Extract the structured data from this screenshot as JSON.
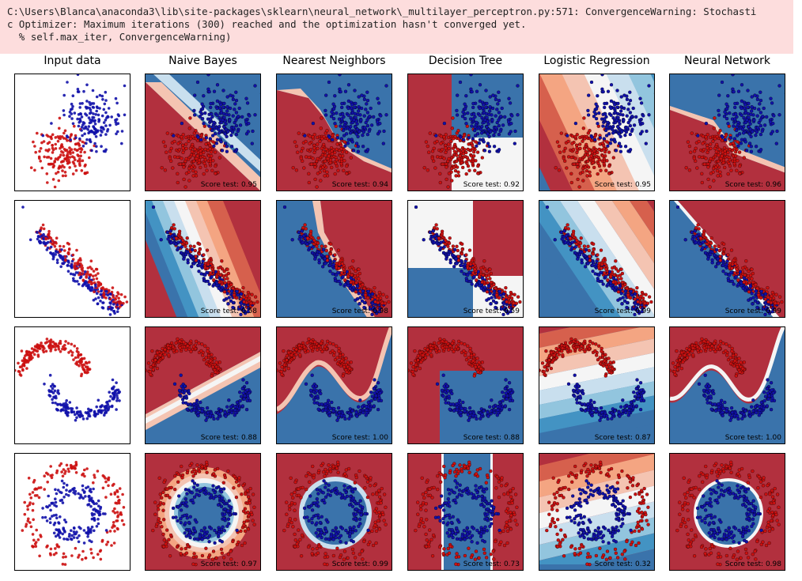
{
  "warning": {
    "lines": [
      "C:\\Users\\Blanca\\anaconda3\\lib\\site-packages\\sklearn\\neural_network\\_multilayer_perceptron.py:571: ConvergenceWarning: Stochasti",
      "c Optimizer: Maximum iterations (300) reached and the optimization hasn't converged yet.",
      "  % self.max_iter, ConvergenceWarning)"
    ]
  },
  "columns": [
    "Input data",
    "Naive Bayes",
    "Nearest Neighbors",
    "Decision Tree",
    "Logistic Regression",
    "Neural Network"
  ],
  "colors": {
    "class0": "#cc1111",
    "class1": "#1111aa",
    "region_red": "#b2303e",
    "region_blue": "#3a73ab",
    "light_red": "#f4c4b2",
    "light_blue": "#c9dfee",
    "neutral": "#f5f5f5"
  },
  "chart_data": [
    {
      "type": "scatter",
      "dataset": "blobs",
      "scores": {
        "Naive Bayes": "Score test: 0.95",
        "Nearest Neighbors": "Score test: 0.94",
        "Decision Tree": "Score test: 0.92",
        "Logistic Regression": "Score test: 0.95",
        "Neural Network": "Score test: 0.96"
      }
    },
    {
      "type": "scatter",
      "dataset": "line",
      "scores": {
        "Naive Bayes": "Score test: 0.58",
        "Nearest Neighbors": "Score test: 0.98",
        "Decision Tree": "Score test: 0.59",
        "Logistic Regression": "Score test: 0.99",
        "Neural Network": "Score test: 0.99"
      }
    },
    {
      "type": "scatter",
      "dataset": "moons",
      "scores": {
        "Naive Bayes": "Score test: 0.88",
        "Nearest Neighbors": "Score test: 1.00",
        "Decision Tree": "Score test: 0.88",
        "Logistic Regression": "Score test: 0.87",
        "Neural Network": "Score test: 1.00"
      }
    },
    {
      "type": "scatter",
      "dataset": "circles",
      "scores": {
        "Naive Bayes": "Score test: 0.97",
        "Nearest Neighbors": "Score test: 0.99",
        "Decision Tree": "Score test: 0.73",
        "Logistic Regression": "Score test: 0.32",
        "Neural Network": "Score test: 0.98"
      }
    }
  ]
}
